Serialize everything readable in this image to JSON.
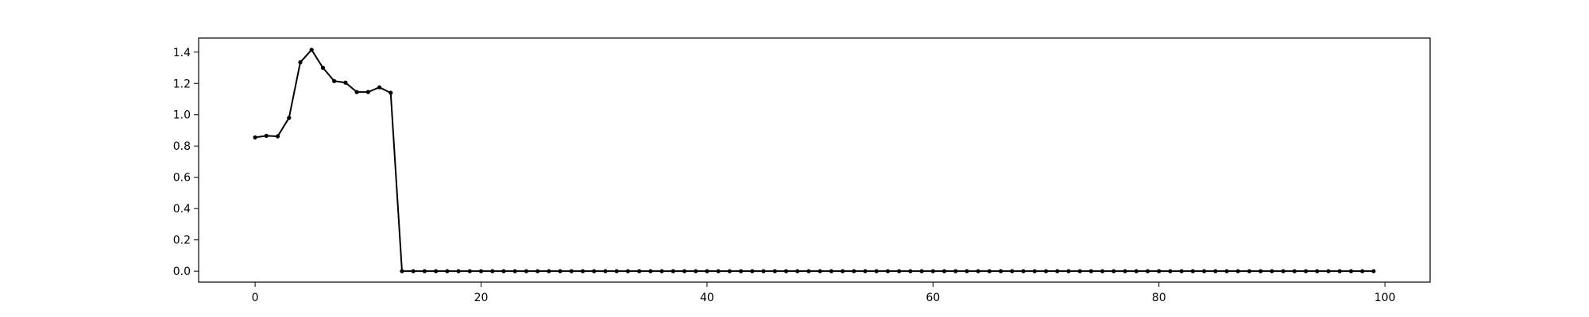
{
  "chart_data": {
    "type": "line",
    "title": "",
    "xlabel": "",
    "ylabel": "",
    "xlim": [
      -5,
      104
    ],
    "ylim": [
      -0.07,
      1.49
    ],
    "x_ticks": [
      0,
      20,
      40,
      60,
      80,
      100
    ],
    "y_ticks": [
      0.0,
      0.2,
      0.4,
      0.6,
      0.8,
      1.0,
      1.2,
      1.4
    ],
    "x_tick_labels": [
      "0",
      "20",
      "40",
      "60",
      "80",
      "100"
    ],
    "y_tick_labels": [
      "0.0",
      "0.2",
      "0.4",
      "0.6",
      "0.8",
      "1.0",
      "1.2",
      "1.4"
    ],
    "grid": false,
    "legend": "none",
    "line_color": "#000000",
    "marker": "circle",
    "series": [
      {
        "x": [
          0,
          1,
          2,
          3,
          4,
          5,
          6,
          7,
          8,
          9,
          10,
          11,
          12,
          13,
          14,
          15,
          16,
          17,
          18,
          19,
          20,
          21,
          22,
          23,
          24,
          25,
          26,
          27,
          28,
          29,
          30,
          31,
          32,
          33,
          34,
          35,
          36,
          37,
          38,
          39,
          40,
          41,
          42,
          43,
          44,
          45,
          46,
          47,
          48,
          49,
          50,
          51,
          52,
          53,
          54,
          55,
          56,
          57,
          58,
          59,
          60,
          61,
          62,
          63,
          64,
          65,
          66,
          67,
          68,
          69,
          70,
          71,
          72,
          73,
          74,
          75,
          76,
          77,
          78,
          79,
          80,
          81,
          82,
          83,
          84,
          85,
          86,
          87,
          88,
          89,
          90,
          91,
          92,
          93,
          94,
          95,
          96,
          97,
          98,
          99
        ],
        "y": [
          0.855,
          0.865,
          0.862,
          0.98,
          1.335,
          1.415,
          1.3,
          1.215,
          1.205,
          1.145,
          1.145,
          1.175,
          1.14,
          0,
          0,
          0,
          0,
          0,
          0,
          0,
          0,
          0,
          0,
          0,
          0,
          0,
          0,
          0,
          0,
          0,
          0,
          0,
          0,
          0,
          0,
          0,
          0,
          0,
          0,
          0,
          0,
          0,
          0,
          0,
          0,
          0,
          0,
          0,
          0,
          0,
          0,
          0,
          0,
          0,
          0,
          0,
          0,
          0,
          0,
          0,
          0,
          0,
          0,
          0,
          0,
          0,
          0,
          0,
          0,
          0,
          0,
          0,
          0,
          0,
          0,
          0,
          0,
          0,
          0,
          0,
          0,
          0,
          0,
          0,
          0,
          0,
          0,
          0,
          0,
          0,
          0,
          0,
          0,
          0,
          0,
          0,
          0,
          0,
          0,
          0
        ]
      }
    ]
  }
}
